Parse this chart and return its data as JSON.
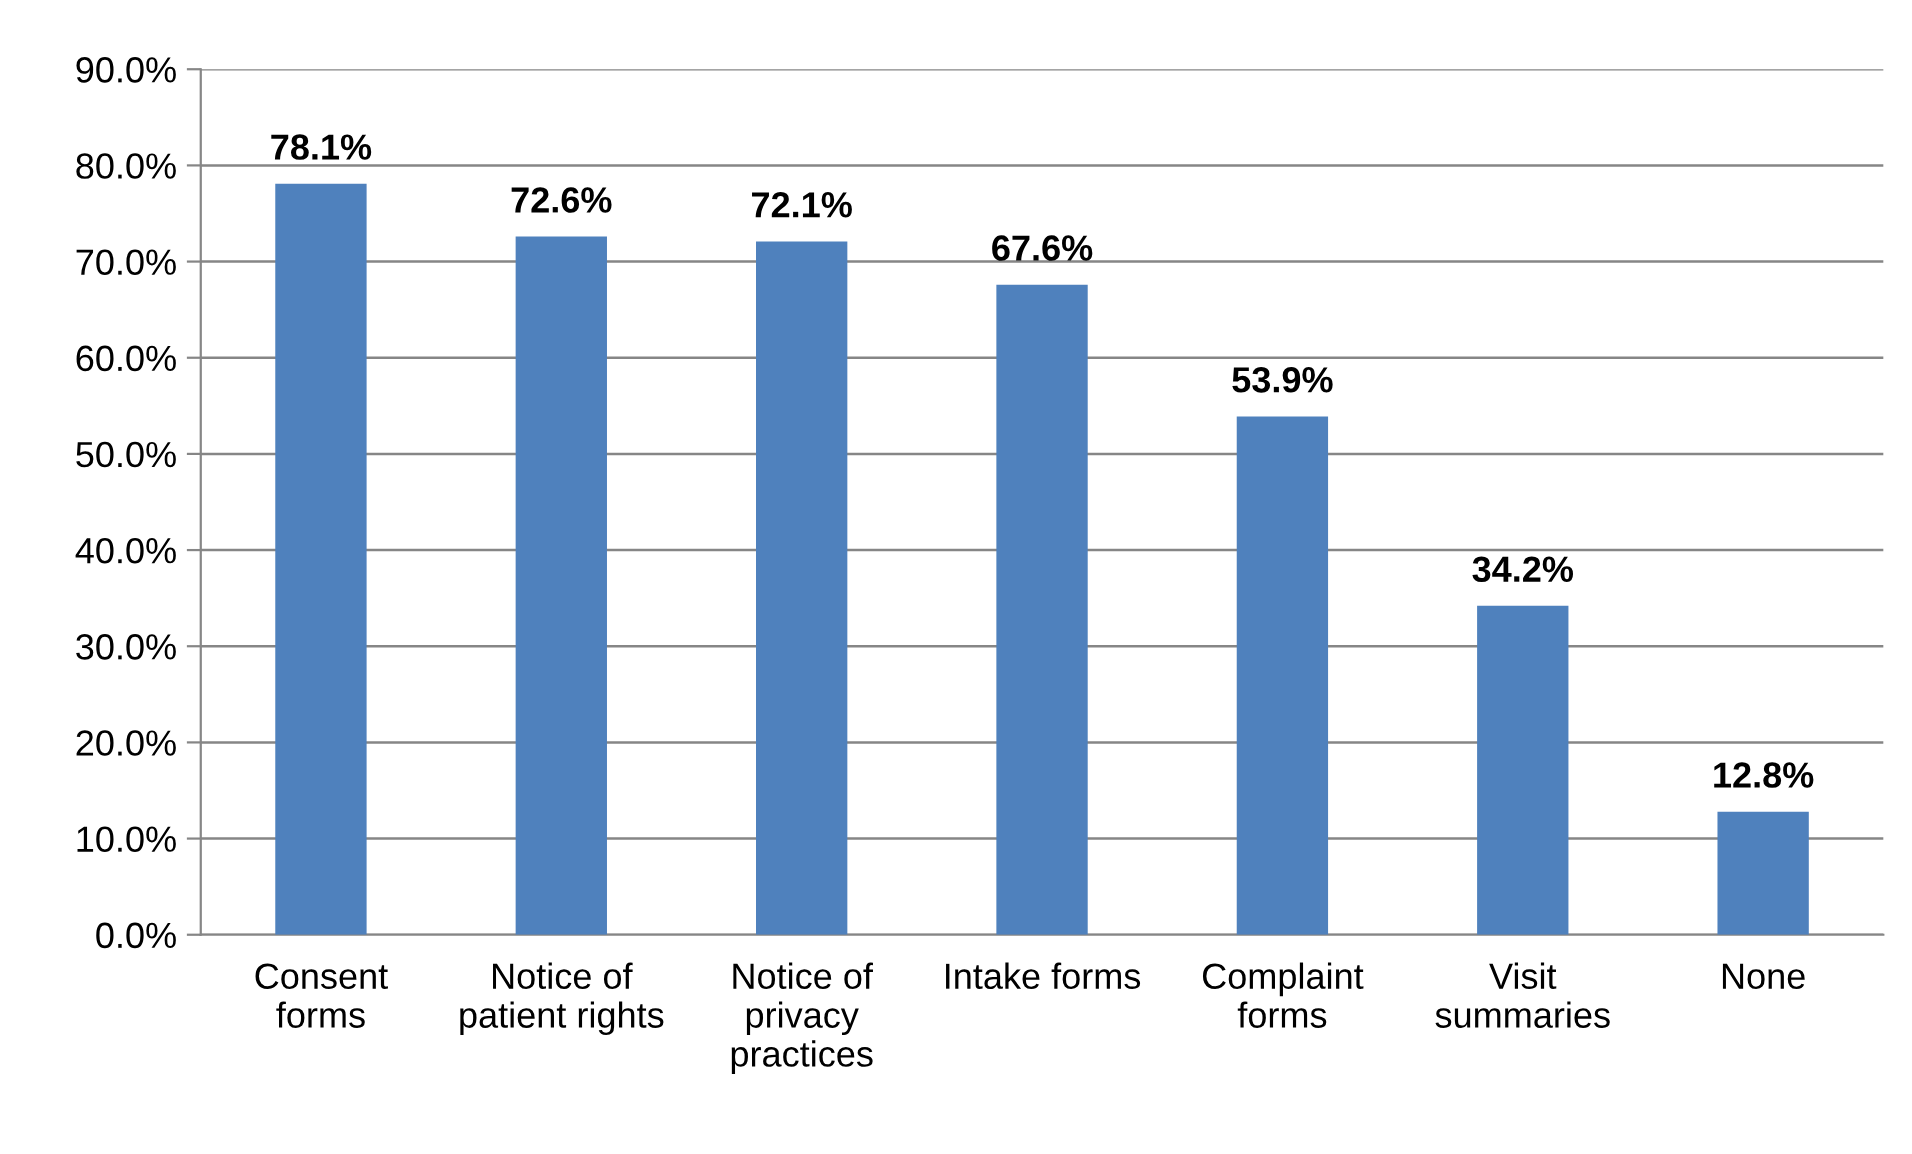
{
  "chart_data": {
    "type": "bar",
    "categories": [
      "Consent\nforms",
      "Notice of\npatient rights",
      "Notice of\nprivacy\npractices",
      "Intake forms",
      "Complaint\nforms",
      "Visit\nsummaries",
      "None"
    ],
    "values": [
      78.1,
      72.6,
      72.1,
      67.6,
      53.9,
      34.2,
      12.8
    ],
    "value_labels": [
      "78.1%",
      "72.6%",
      "72.1%",
      "67.6%",
      "53.9%",
      "34.2%",
      "12.8%"
    ],
    "color": "#4f81bd",
    "ylim": [
      0,
      90
    ],
    "yticks": [
      {
        "value": 0,
        "label": "0.0%"
      },
      {
        "value": 10,
        "label": "10.0%"
      },
      {
        "value": 20,
        "label": "20.0%"
      },
      {
        "value": 30,
        "label": "30.0%"
      },
      {
        "value": 40,
        "label": "40.0%"
      },
      {
        "value": 50,
        "label": "50.0%"
      },
      {
        "value": 60,
        "label": "60.0%"
      },
      {
        "value": 70,
        "label": "70.0%"
      },
      {
        "value": 80,
        "label": "80.0%"
      },
      {
        "value": 90,
        "label": "90.0%"
      }
    ],
    "grid": "y"
  }
}
